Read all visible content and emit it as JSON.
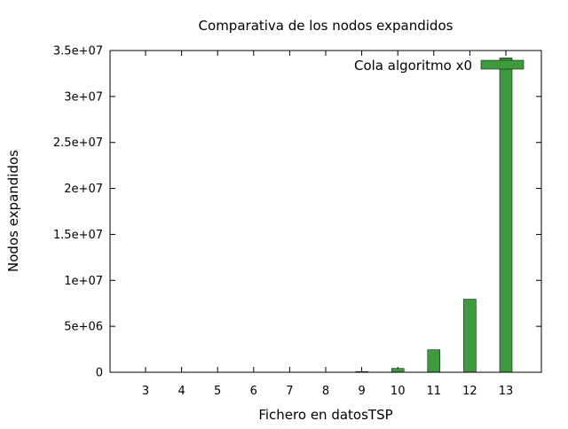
{
  "chart_data": {
    "type": "bar",
    "title": "Comparativa de los nodos expandidos",
    "xlabel": "Fichero en datosTSP",
    "ylabel": "Nodos expandidos",
    "categories": [
      "3",
      "4",
      "5",
      "6",
      "7",
      "8",
      "9",
      "10",
      "11",
      "12",
      "13"
    ],
    "series": [
      {
        "name": "Cola algoritmo x0",
        "color": "#3d9b3d",
        "values": [
          0,
          0,
          0,
          0,
          0,
          0,
          80000,
          420000,
          2450000,
          7950000,
          34200000
        ]
      }
    ],
    "ylim": [
      0,
      35000000
    ],
    "y_ticks": [
      0,
      5000000,
      10000000,
      15000000,
      20000000,
      25000000,
      30000000,
      35000000
    ],
    "y_tick_labels": [
      "0",
      "5e+06",
      "1e+07",
      "1.5e+07",
      "2e+07",
      "2.5e+07",
      "3e+07",
      "3.5e+07"
    ],
    "grid": false,
    "legend_position": "top-right"
  }
}
